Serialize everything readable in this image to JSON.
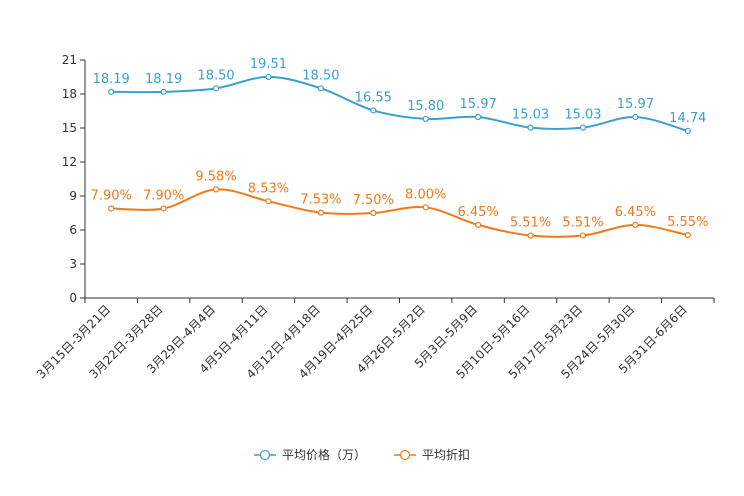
{
  "chart_data": {
    "type": "line",
    "title": "",
    "xlabel": "",
    "ylabel": "",
    "ylim": [
      0,
      21
    ],
    "yticks": [
      0,
      3,
      6,
      9,
      12,
      15,
      18,
      21
    ],
    "categories": [
      "3月15日-3月21日",
      "3月22日-3月28日",
      "3月29日-4月4日",
      "4月5日-4月11日",
      "4月12日-4月18日",
      "4月19日-4月25日",
      "4月26日-5月2日",
      "5月3日-5月9日",
      "5月10日-5月16日",
      "5月17日-5月23日",
      "5月24日-5月30日",
      "5月31日-6月6日"
    ],
    "series": [
      {
        "name": "平均价格（万）",
        "color": "#3ba0d1",
        "values": [
          18.19,
          18.19,
          18.5,
          19.51,
          18.5,
          16.55,
          15.8,
          15.97,
          15.03,
          15.03,
          15.97,
          14.74
        ],
        "labels": [
          "18.19",
          "18.19",
          "18.50",
          "19.51",
          "18.50",
          "16.55",
          "15.80",
          "15.97",
          "15.03",
          "15.03",
          "15.97",
          "14.74"
        ]
      },
      {
        "name": "平均折扣",
        "color": "#f07a1a",
        "values": [
          7.9,
          7.9,
          9.58,
          8.53,
          7.53,
          7.5,
          8.0,
          6.45,
          5.51,
          5.51,
          6.45,
          5.55
        ],
        "labels": [
          "7.90%",
          "7.90%",
          "9.58%",
          "8.53%",
          "7.53%",
          "7.50%",
          "8.00%",
          "6.45%",
          "5.51%",
          "5.51%",
          "6.45%",
          "5.55%"
        ]
      }
    ],
    "legend_position": "bottom-center",
    "grid": false
  }
}
